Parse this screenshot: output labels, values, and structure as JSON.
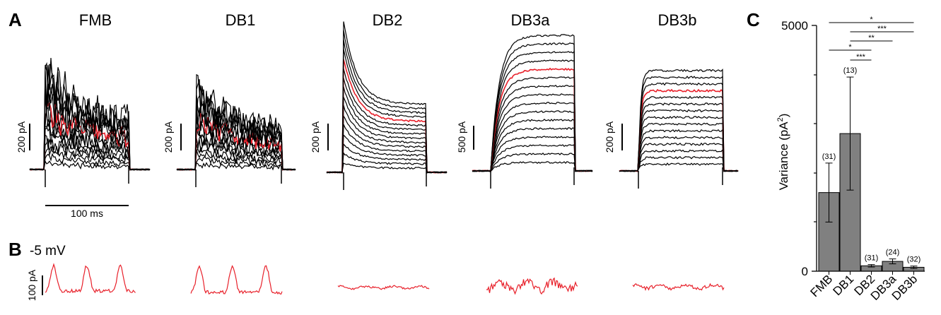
{
  "panels": {
    "A": {
      "label": "A",
      "time_scalebar": "100 ms",
      "cells": [
        {
          "title": "FMB",
          "scalebar": "200 pA"
        },
        {
          "title": "DB1",
          "scalebar": "200 pA"
        },
        {
          "title": "DB2",
          "scalebar": "200 pA"
        },
        {
          "title": "DB3a",
          "scalebar": "500 pA"
        },
        {
          "title": "DB3b",
          "scalebar": "200 pA"
        }
      ]
    },
    "B": {
      "label": "B",
      "voltage": "-5 mV",
      "scalebar": "100 pA"
    },
    "C": {
      "label": "C"
    }
  },
  "colors": {
    "trace": "#000000",
    "highlight_trace": "#e8202a",
    "bar_fill": "#808080"
  },
  "chart_data": {
    "type": "bar",
    "categories": [
      "FMB",
      "DB1",
      "DB2",
      "DB3a",
      "DB3b"
    ],
    "values": [
      1600,
      2800,
      110,
      200,
      80
    ],
    "error": [
      600,
      1150,
      25,
      50,
      25
    ],
    "n_labels": [
      "(31)",
      "(13)",
      "(31)",
      "(24)",
      "(32)"
    ],
    "ylabel_main": "Variance (pA",
    "ylabel_sup": "2",
    "ylabel_close": ")",
    "ylim": [
      0,
      5000
    ],
    "yticks": [
      "0",
      "5000"
    ],
    "significance": [
      {
        "from": "FMB",
        "to": "DB3b",
        "stars": "*"
      },
      {
        "from": "DB1",
        "to": "DB3b",
        "stars": "***"
      },
      {
        "from": "DB1",
        "to": "DB3a",
        "stars": "**"
      },
      {
        "from": "FMB",
        "to": "DB2",
        "stars": "*"
      },
      {
        "from": "DB1",
        "to": "DB2",
        "stars": "***"
      }
    ]
  }
}
